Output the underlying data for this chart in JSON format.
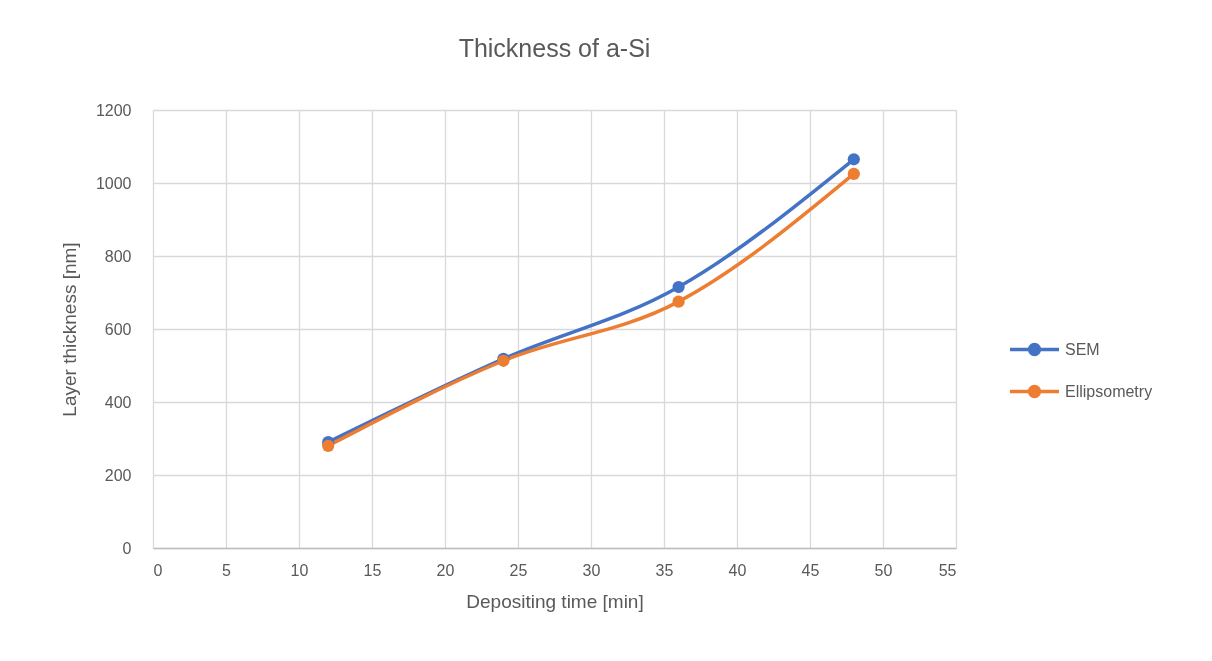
{
  "chart_data": {
    "type": "line",
    "title": "Thickness of a-Si",
    "xlabel": "Depositing time [min]",
    "ylabel": "Layer thickness [nm]",
    "x": [
      12,
      24,
      36,
      48
    ],
    "series": [
      {
        "name": "SEM",
        "color": "#4472c4",
        "values": [
          290,
          518,
          715,
          1065
        ]
      },
      {
        "name": "Ellipsometry",
        "color": "#ed7d31",
        "values": [
          280,
          513,
          675,
          1025
        ]
      }
    ],
    "xlim": [
      0,
      55
    ],
    "xticks": [
      0,
      5,
      10,
      15,
      20,
      25,
      30,
      35,
      40,
      45,
      50,
      55
    ],
    "ylim": [
      0,
      1200
    ],
    "yticks": [
      0,
      200,
      400,
      600,
      800,
      1000,
      1200
    ],
    "grid": true,
    "legend": "right",
    "marker": "circle",
    "line_style": "solid"
  }
}
